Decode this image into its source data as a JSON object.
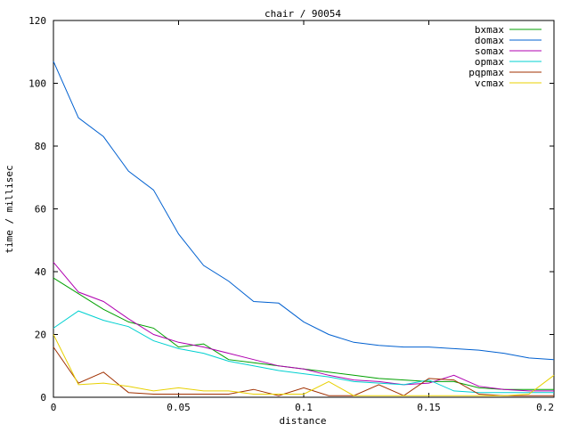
{
  "chart_data": {
    "type": "line",
    "title": "chair / 90054",
    "xlabel": "distance",
    "ylabel": "time / millisec",
    "xlim": [
      0,
      0.2
    ],
    "ylim": [
      0,
      120
    ],
    "xticks": [
      0,
      0.05,
      0.1,
      0.15,
      0.2
    ],
    "xtick_labels": [
      "0",
      "0.05",
      "0.1",
      "0.15",
      "0.2"
    ],
    "yticks": [
      0,
      20,
      40,
      60,
      80,
      100,
      120
    ],
    "ytick_labels": [
      "0",
      "20",
      "40",
      "60",
      "80",
      "100",
      "120"
    ],
    "grid": false,
    "legend_position": "top-right",
    "x": [
      0,
      0.01,
      0.02,
      0.03,
      0.04,
      0.05,
      0.06,
      0.07,
      0.08,
      0.09,
      0.1,
      0.11,
      0.12,
      0.13,
      0.14,
      0.15,
      0.16,
      0.17,
      0.18,
      0.19,
      0.2
    ],
    "series": [
      {
        "name": "bxmax",
        "color": "#00a000",
        "values": [
          38,
          33,
          28,
          24,
          22,
          16,
          17,
          12,
          11,
          10,
          9,
          8,
          7,
          6,
          5.5,
          5,
          5,
          3,
          2.5,
          2.5,
          2.5
        ]
      },
      {
        "name": "domax",
        "color": "#0060d0",
        "values": [
          107,
          89,
          83,
          72,
          66,
          52,
          42,
          37,
          30.5,
          30,
          24,
          20,
          17.5,
          16.5,
          16,
          16,
          15.5,
          15,
          14,
          12.5,
          12
        ]
      },
      {
        "name": "somax",
        "color": "#b000b0",
        "values": [
          43,
          33.5,
          30.5,
          25,
          20,
          17.5,
          16,
          14,
          12,
          10,
          9,
          7,
          5.5,
          5,
          4,
          4.5,
          7,
          3.5,
          2.5,
          2,
          2
        ]
      },
      {
        "name": "opmax",
        "color": "#00d0d0",
        "values": [
          22,
          27.5,
          24.5,
          22.5,
          18,
          15.5,
          14,
          11.5,
          10,
          8.5,
          7.5,
          6.5,
          5,
          4.5,
          4,
          5.5,
          2,
          1.5,
          1.5,
          1.5,
          1.5
        ]
      },
      {
        "name": "pqpmax",
        "color": "#a03000",
        "values": [
          16,
          4.5,
          8,
          1.5,
          1,
          1,
          1,
          1,
          2.5,
          0.5,
          3,
          0.5,
          0.5,
          4,
          0.5,
          6,
          5.5,
          1,
          0.5,
          0.5,
          0.5
        ]
      },
      {
        "name": "vcmax",
        "color": "#e8d000",
        "values": [
          20,
          4,
          4.5,
          3.5,
          2,
          3,
          2,
          2,
          1,
          1,
          1,
          5,
          0.5,
          0.5,
          0.5,
          0.5,
          0.5,
          0.5,
          0.5,
          1,
          7
        ]
      }
    ]
  }
}
